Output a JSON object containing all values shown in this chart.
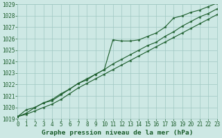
{
  "title": "Graphe pression niveau de la mer (hPa)",
  "bg_color": "#cde8e4",
  "grid_color": "#a0c8c2",
  "line_color": "#1a5c2a",
  "x_values": [
    0,
    1,
    2,
    3,
    4,
    5,
    6,
    7,
    8,
    9,
    10,
    11,
    12,
    13,
    14,
    15,
    16,
    17,
    18,
    19,
    20,
    21,
    22,
    23
  ],
  "series1": [
    1019.2,
    1019.8,
    1020.0,
    1020.4,
    1020.6,
    1021.1,
    1021.6,
    1022.1,
    1022.4,
    1022.9,
    1023.3,
    1025.9,
    1025.8,
    1025.8,
    1025.9,
    1026.2,
    1026.5,
    1027.0,
    1027.8,
    1028.0,
    1028.3,
    1028.5,
    1028.8,
    1029.1
  ],
  "series2": [
    1019.2,
    1019.5,
    1020.0,
    1020.4,
    1020.7,
    1021.2,
    1021.6,
    1022.1,
    1022.5,
    1022.9,
    1023.3,
    1023.8,
    1024.2,
    1024.6,
    1025.0,
    1025.4,
    1025.7,
    1026.2,
    1026.6,
    1027.1,
    1027.5,
    1027.9,
    1028.2,
    1028.6
  ],
  "series3": [
    1019.2,
    1019.4,
    1019.7,
    1020.0,
    1020.3,
    1020.7,
    1021.2,
    1021.7,
    1022.1,
    1022.5,
    1022.9,
    1023.3,
    1023.7,
    1024.1,
    1024.5,
    1024.9,
    1025.3,
    1025.7,
    1026.1,
    1026.5,
    1026.9,
    1027.3,
    1027.7,
    1028.1
  ],
  "ylim_min": 1019,
  "ylim_max": 1029,
  "tick_fontsize": 5.5,
  "xlabel_fontsize": 6.8,
  "figw": 3.2,
  "figh": 2.0,
  "dpi": 100
}
